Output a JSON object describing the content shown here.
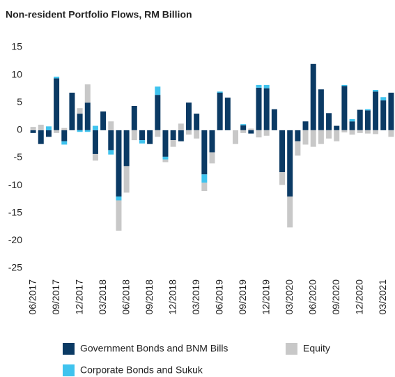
{
  "chart_data": {
    "type": "bar",
    "stacked": true,
    "title": "Non-resident Portfolio Flows, RM Billion",
    "categories": [
      "06/2017",
      null,
      null,
      "09/2017",
      null,
      null,
      "12/2017",
      null,
      null,
      "03/2018",
      null,
      null,
      "06/2018",
      null,
      null,
      "09/2018",
      null,
      null,
      "12/2018",
      null,
      null,
      "03/2019",
      null,
      null,
      "06/2019",
      null,
      null,
      "09/2019",
      null,
      null,
      "12/2019",
      null,
      null,
      "03/2020",
      null,
      null,
      "06/2020",
      null,
      null,
      "09/2020",
      null,
      null,
      "12/2020",
      null,
      null,
      "03/2021",
      null
    ],
    "series": [
      {
        "name": "Government Bonds and BNM Bills",
        "color": "#0b3a64",
        "values": [
          -0.5,
          -2.5,
          -1.2,
          9.4,
          -2.0,
          6.8,
          3.0,
          5.0,
          -4.3,
          3.4,
          -3.6,
          -12.0,
          -6.5,
          4.4,
          -1.8,
          -2.5,
          6.4,
          -4.8,
          -1.8,
          -2.0,
          5.0,
          3.0,
          -8.0,
          -4.0,
          6.8,
          5.9,
          0,
          0.9,
          -0.6,
          7.7,
          7.6,
          3.8,
          -7.6,
          -12.0,
          -2.0,
          1.6,
          12.0,
          7.4,
          3.1,
          0.8,
          8.0,
          1.6,
          3.7,
          3.6,
          7.0,
          5.4,
          6.8
        ]
      },
      {
        "name": "Corporate Bonds and Sukuk",
        "color": "#3fc3ee",
        "values": [
          0,
          0,
          0.7,
          0.3,
          -0.6,
          0,
          -0.3,
          -0.3,
          0.8,
          0,
          -0.8,
          -0.7,
          0,
          0,
          -0.6,
          0,
          1.5,
          -0.5,
          0,
          0,
          0,
          0,
          -1.5,
          0,
          0.2,
          0,
          0,
          0.2,
          0,
          0.5,
          0.6,
          0,
          0,
          0,
          0,
          0,
          0,
          0,
          0,
          0,
          0.2,
          0.4,
          0,
          0.2,
          0.3,
          0.6,
          0
        ]
      },
      {
        "name": "Equity",
        "color": "#c8c8c8",
        "values": [
          0.6,
          1.0,
          0,
          -0.5,
          0.4,
          0,
          1.0,
          3.3,
          -1.2,
          0,
          1.6,
          -5.5,
          -4.8,
          -1.8,
          0,
          0,
          -1.2,
          -0.5,
          -1.2,
          1.2,
          -0.8,
          -1.5,
          -1.5,
          -2.0,
          0,
          0,
          -2.5,
          -0.5,
          0.3,
          -1.3,
          -1.0,
          0,
          -2.3,
          -5.6,
          -2.6,
          -2.6,
          -3.0,
          -2.5,
          -1.5,
          -2.0,
          -0.4,
          -0.8,
          -0.5,
          -0.6,
          -0.7,
          0,
          -1.2
        ]
      }
    ],
    "ylim": [
      -25,
      15
    ],
    "yticks": [
      -25,
      -20,
      -15,
      -10,
      -5,
      0,
      5,
      10,
      15
    ],
    "grid": false,
    "legend": "bottom"
  }
}
